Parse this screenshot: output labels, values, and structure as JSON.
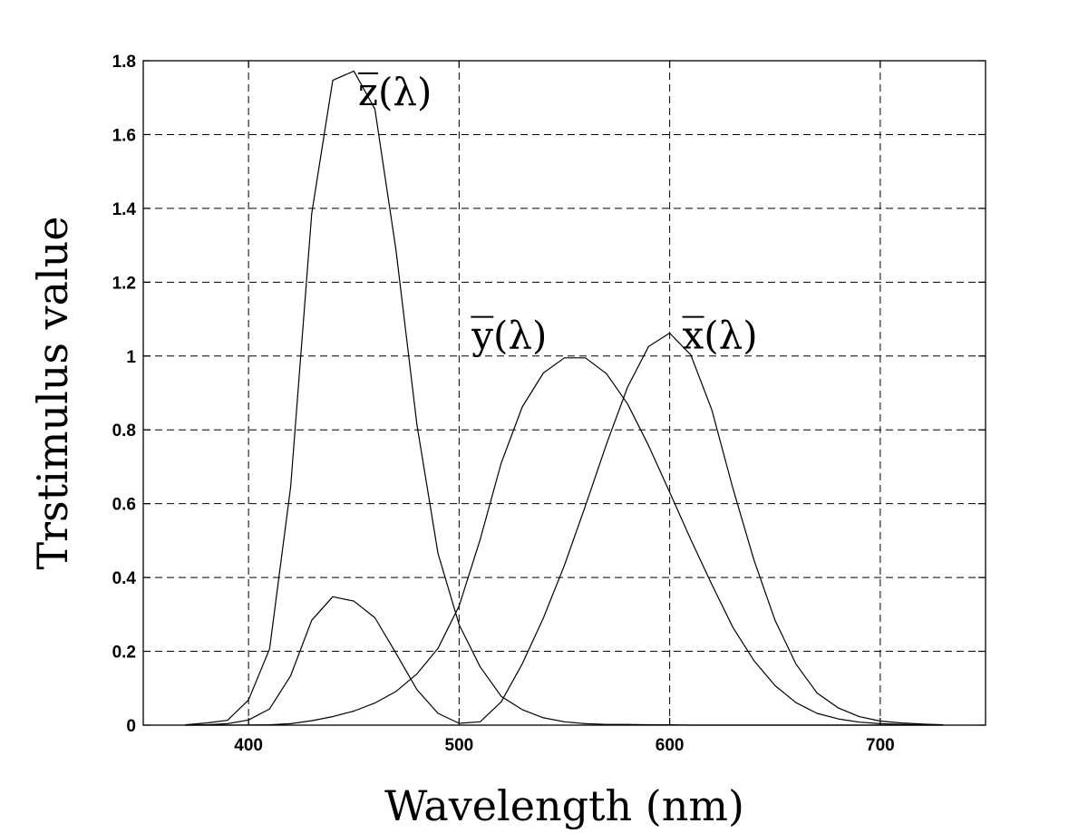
{
  "chart_data": {
    "type": "line",
    "title": "",
    "xlabel": "Wavelength (nm)",
    "ylabel": "Trstimulus value",
    "xlim": [
      350,
      750
    ],
    "ylim": [
      0,
      1.8
    ],
    "x_ticks": [
      400,
      500,
      600,
      700
    ],
    "y_ticks": [
      0,
      0.2,
      0.4,
      0.6,
      0.8,
      1,
      1.2,
      1.4,
      1.6,
      1.8
    ],
    "x_tick_labels": [
      "400",
      "500",
      "600",
      "700"
    ],
    "y_tick_labels": [
      "0",
      "0.2",
      "0.4",
      "0.6",
      "0.8",
      "1",
      "1.2",
      "1.4",
      "1.6",
      "1.8"
    ],
    "grid": true,
    "x": [
      370,
      380,
      390,
      400,
      410,
      420,
      430,
      440,
      450,
      460,
      470,
      480,
      490,
      500,
      510,
      520,
      530,
      540,
      550,
      560,
      570,
      580,
      590,
      600,
      610,
      620,
      630,
      640,
      650,
      660,
      670,
      680,
      690,
      700,
      710,
      720,
      730
    ],
    "series": [
      {
        "name": "x̄(λ)",
        "values": [
          0.0001,
          0.001,
          0.004,
          0.014,
          0.044,
          0.134,
          0.284,
          0.348,
          0.336,
          0.291,
          0.195,
          0.096,
          0.032,
          0.005,
          0.009,
          0.063,
          0.166,
          0.29,
          0.433,
          0.594,
          0.762,
          0.916,
          1.026,
          1.062,
          1.003,
          0.854,
          0.642,
          0.448,
          0.284,
          0.165,
          0.087,
          0.047,
          0.023,
          0.011,
          0.006,
          0.003,
          0.001
        ]
      },
      {
        "name": "ȳ(λ)",
        "values": [
          0.0,
          0.0,
          0.0001,
          0.0004,
          0.001,
          0.004,
          0.012,
          0.023,
          0.038,
          0.06,
          0.091,
          0.139,
          0.208,
          0.323,
          0.503,
          0.71,
          0.862,
          0.954,
          0.995,
          0.995,
          0.952,
          0.87,
          0.757,
          0.631,
          0.503,
          0.381,
          0.265,
          0.175,
          0.107,
          0.061,
          0.032,
          0.017,
          0.008,
          0.004,
          0.002,
          0.001,
          0.0005
        ]
      },
      {
        "name": "z̄(λ)",
        "values": [
          0.001,
          0.006,
          0.013,
          0.068,
          0.207,
          0.646,
          1.386,
          1.747,
          1.772,
          1.669,
          1.288,
          0.813,
          0.465,
          0.272,
          0.158,
          0.078,
          0.042,
          0.02,
          0.009,
          0.004,
          0.002,
          0.002,
          0.001,
          0.001,
          0.0,
          0.0,
          0.0,
          0.0,
          0.0,
          0.0,
          0.0,
          0.0,
          0.0,
          0.0,
          0.0,
          0.0,
          0.0
        ]
      }
    ],
    "annotations": [
      {
        "base": "z",
        "suffix": "(λ)",
        "series": "z̄(λ)",
        "x": 452,
        "y": 1.68
      },
      {
        "base": "y",
        "suffix": "(λ)",
        "series": "ȳ(λ)",
        "x": 506,
        "y": 1.02
      },
      {
        "base": "x",
        "suffix": "(λ)",
        "series": "x̄(λ)",
        "x": 606,
        "y": 1.02
      }
    ]
  }
}
